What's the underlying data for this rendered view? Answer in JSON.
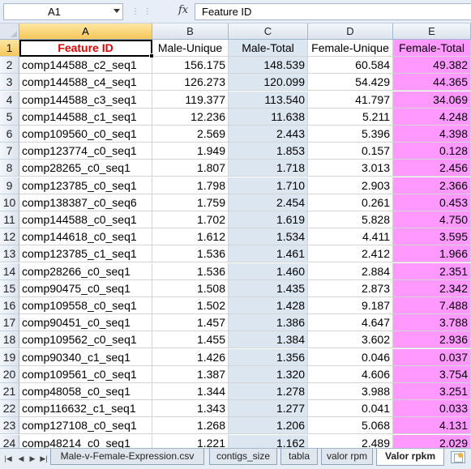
{
  "formula_bar": {
    "name_box": "A1",
    "fx_label": "fx",
    "formula": "Feature ID"
  },
  "columns": [
    "A",
    "B",
    "C",
    "D",
    "E"
  ],
  "header_row": {
    "row_number": "1",
    "cells": [
      "Feature ID",
      "Male-Unique",
      "Male-Total",
      "Female-Unique",
      "Female-Total"
    ]
  },
  "rows": [
    {
      "n": "2",
      "cells": [
        "comp144588_c2_seq1",
        "156.175",
        "148.539",
        "60.584",
        "49.382"
      ]
    },
    {
      "n": "3",
      "cells": [
        "comp144588_c4_seq1",
        "126.273",
        "120.099",
        "54.429",
        "44.365"
      ]
    },
    {
      "n": "4",
      "cells": [
        "comp144588_c3_seq1",
        "119.377",
        "113.540",
        "41.797",
        "34.069"
      ]
    },
    {
      "n": "5",
      "cells": [
        "comp144588_c1_seq1",
        "12.236",
        "11.638",
        "5.211",
        "4.248"
      ]
    },
    {
      "n": "6",
      "cells": [
        "comp109560_c0_seq1",
        "2.569",
        "2.443",
        "5.396",
        "4.398"
      ]
    },
    {
      "n": "7",
      "cells": [
        "comp123774_c0_seq1",
        "1.949",
        "1.853",
        "0.157",
        "0.128"
      ]
    },
    {
      "n": "8",
      "cells": [
        "comp28265_c0_seq1",
        "1.807",
        "1.718",
        "3.013",
        "2.456"
      ]
    },
    {
      "n": "9",
      "cells": [
        "comp123785_c0_seq1",
        "1.798",
        "1.710",
        "2.903",
        "2.366"
      ]
    },
    {
      "n": "10",
      "cells": [
        "comp138387_c0_seq6",
        "1.759",
        "2.454",
        "0.261",
        "0.453"
      ]
    },
    {
      "n": "11",
      "cells": [
        "comp144588_c0_seq1",
        "1.702",
        "1.619",
        "5.828",
        "4.750"
      ]
    },
    {
      "n": "12",
      "cells": [
        "comp144618_c0_seq1",
        "1.612",
        "1.534",
        "4.411",
        "3.595"
      ]
    },
    {
      "n": "13",
      "cells": [
        "comp123785_c1_seq1",
        "1.536",
        "1.461",
        "2.412",
        "1.966"
      ]
    },
    {
      "n": "14",
      "cells": [
        "comp28266_c0_seq1",
        "1.536",
        "1.460",
        "2.884",
        "2.351"
      ]
    },
    {
      "n": "15",
      "cells": [
        "comp90475_c0_seq1",
        "1.508",
        "1.435",
        "2.873",
        "2.342"
      ]
    },
    {
      "n": "16",
      "cells": [
        "comp109558_c0_seq1",
        "1.502",
        "1.428",
        "9.187",
        "7.488"
      ]
    },
    {
      "n": "17",
      "cells": [
        "comp90451_c0_seq1",
        "1.457",
        "1.386",
        "4.647",
        "3.788"
      ]
    },
    {
      "n": "18",
      "cells": [
        "comp109562_c0_seq1",
        "1.455",
        "1.384",
        "3.602",
        "2.936"
      ]
    },
    {
      "n": "19",
      "cells": [
        "comp90340_c1_seq1",
        "1.426",
        "1.356",
        "0.046",
        "0.037"
      ]
    },
    {
      "n": "20",
      "cells": [
        "comp109561_c0_seq1",
        "1.387",
        "1.320",
        "4.606",
        "3.754"
      ]
    },
    {
      "n": "21",
      "cells": [
        "comp48058_c0_seq1",
        "1.344",
        "1.278",
        "3.988",
        "3.251"
      ]
    },
    {
      "n": "22",
      "cells": [
        "comp116632_c1_seq1",
        "1.343",
        "1.277",
        "0.041",
        "0.033"
      ]
    },
    {
      "n": "23",
      "cells": [
        "comp127108_c0_seq1",
        "1.268",
        "1.206",
        "5.068",
        "4.131"
      ]
    },
    {
      "n": "24",
      "cells": [
        "comp48214_c0_seq1",
        "1.221",
        "1.162",
        "2.489",
        "2.029"
      ]
    }
  ],
  "sheet_tabs": {
    "tabs": [
      "Male-v-Female-Expression.csv",
      "contigs_size",
      "tabla",
      "valor rpm",
      "Valor rpkm"
    ],
    "active": "Valor rpkm"
  },
  "colors": {
    "male_total_fill": "#dce6f1",
    "female_total_fill": "#ff99ff",
    "header_red": "#e00000",
    "selection_header": "#f6c65a"
  }
}
